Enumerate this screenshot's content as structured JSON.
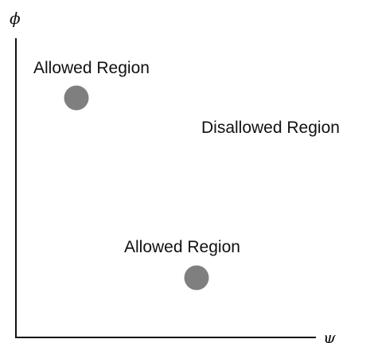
{
  "axes": {
    "y_label": "ϕ",
    "x_label": "ψ"
  },
  "regions": [
    {
      "label": "Allowed Region",
      "kind": "allowed"
    },
    {
      "label": "Disallowed Region",
      "kind": "disallowed"
    },
    {
      "label": "Allowed Region",
      "kind": "allowed"
    }
  ],
  "colors": {
    "axis": "#111111",
    "point": "#7f7f7f"
  }
}
